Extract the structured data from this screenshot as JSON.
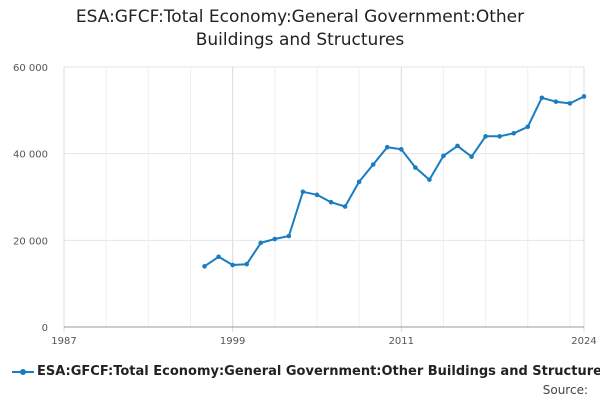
{
  "chart_data": {
    "type": "line",
    "title_lines": [
      "ESA:GFCF:Total Economy:General Government:Other",
      "Buildings and Structures"
    ],
    "xlabel": "",
    "ylabel": "",
    "xlim": [
      1987,
      2024
    ],
    "ylim": [
      0,
      60000
    ],
    "x_ticks": [
      {
        "value": 1987,
        "label": "1987"
      },
      {
        "value": 1999,
        "label": "1999"
      },
      {
        "value": 2011,
        "label": "2011"
      },
      {
        "value": 2024,
        "label": "2024"
      }
    ],
    "y_ticks": [
      {
        "value": 0,
        "label": "0"
      },
      {
        "value": 20000,
        "label": "20 000"
      },
      {
        "value": 40000,
        "label": "40 000"
      },
      {
        "value": 60000,
        "label": "60 000"
      }
    ],
    "grid": true,
    "legend_position": "bottom-left",
    "series": [
      {
        "name": "ESA:GFCF:Total Economy:General Government:Other Buildings and Structures",
        "color": "#1a7dc0",
        "x": [
          1997,
          1998,
          1999,
          2000,
          2001,
          2002,
          2003,
          2004,
          2005,
          2006,
          2007,
          2008,
          2009,
          2010,
          2011,
          2012,
          2013,
          2014,
          2015,
          2016,
          2017,
          2018,
          2019,
          2020,
          2021,
          2022,
          2023,
          2024
        ],
        "y": [
          14000,
          16200,
          14300,
          14500,
          19400,
          20300,
          21000,
          31200,
          30500,
          28800,
          27800,
          33500,
          37500,
          41500,
          41000,
          36800,
          34000,
          39500,
          41800,
          39300,
          44000,
          44000,
          44700,
          46200,
          52900,
          52000,
          51600,
          53200
        ]
      }
    ]
  },
  "legend": {
    "label": "ESA:GFCF:Total Economy:General Government:Other Buildings and Structures"
  },
  "footer": {
    "source_label": "Source:"
  }
}
